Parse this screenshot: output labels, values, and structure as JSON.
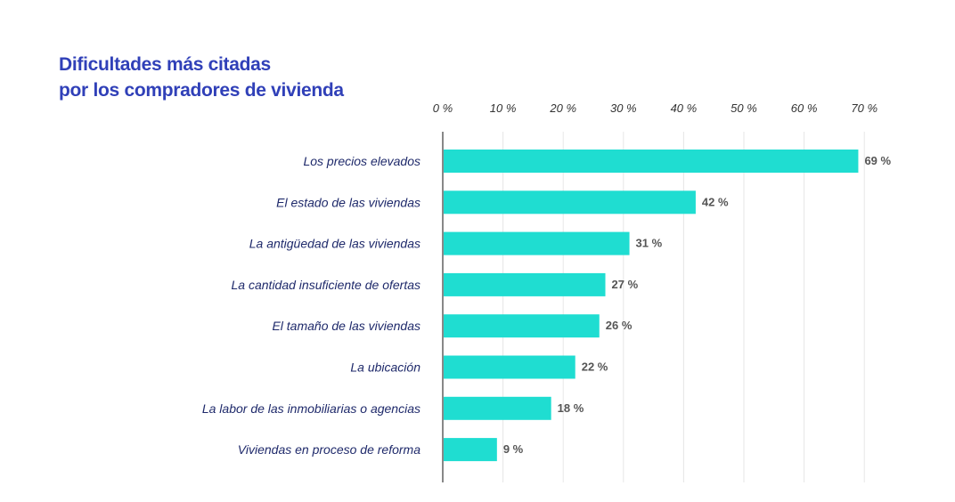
{
  "chart_data": {
    "type": "bar",
    "orientation": "horizontal",
    "title_lines": [
      "Dificultades más citadas",
      "por los compradores de vivienda"
    ],
    "categories": [
      "Los precios elevados",
      "El estado de las viviendas",
      "La antigüedad de las viviendas",
      "La cantidad insuficiente de ofertas",
      "El tamaño de las viviendas",
      "La ubicación",
      "La labor de las inmobiliarias o agencias",
      "Viviendas en proceso de reforma"
    ],
    "values": [
      69,
      42,
      31,
      27,
      26,
      22,
      18,
      9
    ],
    "value_labels": [
      "69 %",
      "42 %",
      "31 %",
      "27 %",
      "26 %",
      "22 %",
      "18 %",
      "9 %"
    ],
    "xticks": [
      "0 %",
      "10 %",
      "20 %",
      "30 %",
      "40 %",
      "50 %",
      "60 %",
      "70 %"
    ],
    "xlim": [
      0,
      70
    ],
    "xaxis_position": "top",
    "grid": true,
    "colors": {
      "bar": "#1fddd1",
      "title": "#3040b8",
      "category": "#1f2a6b",
      "value": "#555555",
      "grid": "#e6e6e6",
      "axis": "#888888"
    }
  }
}
